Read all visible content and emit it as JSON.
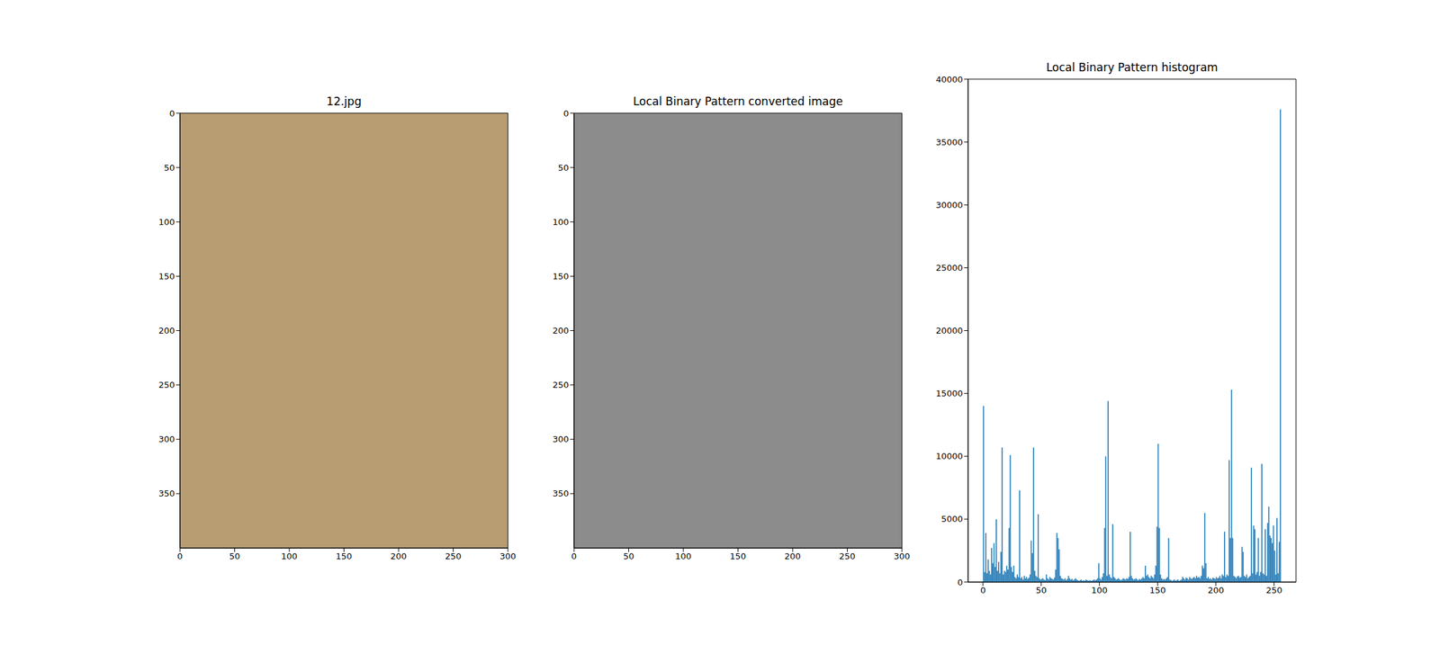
{
  "chart_data": [
    {
      "type": "image",
      "title": "12.jpg",
      "xlim": [
        0,
        300
      ],
      "ylim": [
        400,
        0
      ],
      "xticks": [
        0,
        50,
        100,
        150,
        200,
        250,
        300
      ],
      "yticks": [
        0,
        50,
        100,
        150,
        200,
        250,
        300,
        350
      ]
    },
    {
      "type": "image",
      "title": "Local Binary Pattern converted image",
      "xlim": [
        0,
        300
      ],
      "ylim": [
        400,
        0
      ],
      "xticks": [
        0,
        50,
        100,
        150,
        200,
        250,
        300
      ],
      "yticks": [
        0,
        50,
        100,
        150,
        200,
        250,
        300,
        350
      ]
    },
    {
      "type": "histogram",
      "title": "Local Binary Pattern histogram",
      "color": "#1f77b4",
      "xlim": [
        -12.8,
        268.8
      ],
      "ylim": [
        0,
        40000
      ],
      "xticks": [
        0,
        50,
        100,
        150,
        200,
        250
      ],
      "yticks": [
        0,
        5000,
        10000,
        15000,
        20000,
        25000,
        30000,
        35000,
        40000
      ],
      "bins": [
        0,
        1,
        2,
        3,
        4,
        5,
        6,
        7,
        8,
        9,
        10,
        11,
        12,
        13,
        14,
        15,
        16,
        17,
        18,
        19,
        20,
        21,
        22,
        23,
        24,
        25,
        26,
        27,
        28,
        29,
        30,
        31,
        32,
        33,
        34,
        35,
        36,
        37,
        38,
        39,
        40,
        41,
        42,
        43,
        44,
        45,
        46,
        47,
        48,
        49,
        50,
        51,
        52,
        53,
        54,
        55,
        56,
        57,
        58,
        59,
        60,
        61,
        62,
        63,
        64,
        65,
        66,
        67,
        68,
        69,
        70,
        71,
        72,
        73,
        74,
        75,
        76,
        77,
        78,
        79,
        80,
        81,
        82,
        83,
        84,
        85,
        86,
        87,
        88,
        89,
        90,
        91,
        92,
        93,
        94,
        95,
        96,
        97,
        98,
        99,
        100,
        101,
        102,
        103,
        104,
        105,
        106,
        107,
        108,
        109,
        110,
        111,
        112,
        113,
        114,
        115,
        116,
        117,
        118,
        119,
        120,
        121,
        122,
        123,
        124,
        125,
        126,
        127,
        128,
        129,
        130,
        131,
        132,
        133,
        134,
        135,
        136,
        137,
        138,
        139,
        140,
        141,
        142,
        143,
        144,
        145,
        146,
        147,
        148,
        149,
        150,
        151,
        152,
        153,
        154,
        155,
        156,
        157,
        158,
        159,
        160,
        161,
        162,
        163,
        164,
        165,
        166,
        167,
        168,
        169,
        170,
        171,
        172,
        173,
        174,
        175,
        176,
        177,
        178,
        179,
        180,
        181,
        182,
        183,
        184,
        185,
        186,
        187,
        188,
        189,
        190,
        191,
        192,
        193,
        194,
        195,
        196,
        197,
        198,
        199,
        200,
        201,
        202,
        203,
        204,
        205,
        206,
        207,
        208,
        209,
        210,
        211,
        212,
        213,
        214,
        215,
        216,
        217,
        218,
        219,
        220,
        221,
        222,
        223,
        224,
        225,
        226,
        227,
        228,
        229,
        230,
        231,
        232,
        233,
        234,
        235,
        236,
        237,
        238,
        239,
        240,
        241,
        242,
        243,
        244,
        245,
        246,
        247,
        248,
        249,
        250,
        251,
        252,
        253,
        254,
        255,
        256
      ],
      "values": [
        14000,
        800,
        3900,
        700,
        1800,
        900,
        600,
        2700,
        1500,
        3100,
        1200,
        5000,
        900,
        1600,
        700,
        2400,
        10700,
        600,
        900,
        800,
        1300,
        1000,
        4300,
        10100,
        1200,
        800,
        1300,
        400,
        300,
        600,
        400,
        7300,
        300,
        400,
        200,
        500,
        300,
        400,
        250,
        350,
        600,
        3300,
        2300,
        10700,
        900,
        500,
        400,
        5400,
        300,
        200,
        250,
        300,
        200,
        150,
        600,
        300,
        200,
        400,
        300,
        250,
        200,
        350,
        1000,
        3900,
        3500,
        2600,
        500,
        300,
        250,
        200,
        300,
        150,
        250,
        500,
        300,
        200,
        250,
        150,
        200,
        300,
        200,
        150,
        100,
        150,
        200,
        100,
        150,
        100,
        200,
        150,
        100,
        150,
        120,
        100,
        150,
        200,
        150,
        200,
        300,
        1500,
        300,
        200,
        400,
        700,
        4300,
        10000,
        500,
        14400,
        600,
        400,
        300,
        4600,
        400,
        300,
        200,
        250,
        300,
        200,
        150,
        200,
        300,
        250,
        200,
        300,
        250,
        400,
        4000,
        500,
        300,
        200,
        250,
        300,
        200,
        150,
        250,
        200,
        300,
        400,
        300,
        1300,
        500,
        600,
        400,
        300,
        500,
        400,
        300,
        600,
        1300,
        4400,
        11000,
        4300,
        600,
        300,
        200,
        250,
        200,
        300,
        400,
        3500,
        200,
        150,
        100,
        150,
        200,
        100,
        150,
        200,
        100,
        150,
        200,
        400,
        300,
        200,
        350,
        300,
        200,
        400,
        300,
        250,
        350,
        400,
        300,
        500,
        350,
        400,
        300,
        500,
        1300,
        1100,
        5500,
        1500,
        300,
        400,
        250,
        300,
        200,
        350,
        300,
        250,
        400,
        300,
        350,
        500,
        300,
        600,
        500,
        4000,
        400,
        600,
        500,
        9700,
        3500,
        15300,
        3500,
        500,
        400,
        300,
        450,
        500,
        350,
        400,
        2800,
        2400,
        500,
        400,
        600,
        300,
        400,
        500,
        9100,
        700,
        4500,
        4200,
        600,
        800,
        3500,
        500,
        800,
        9400,
        700,
        600,
        4200,
        500,
        4700,
        6000,
        3700,
        3500,
        3100,
        4500,
        2500,
        600,
        5100,
        700,
        3200,
        37600
      ]
    }
  ]
}
